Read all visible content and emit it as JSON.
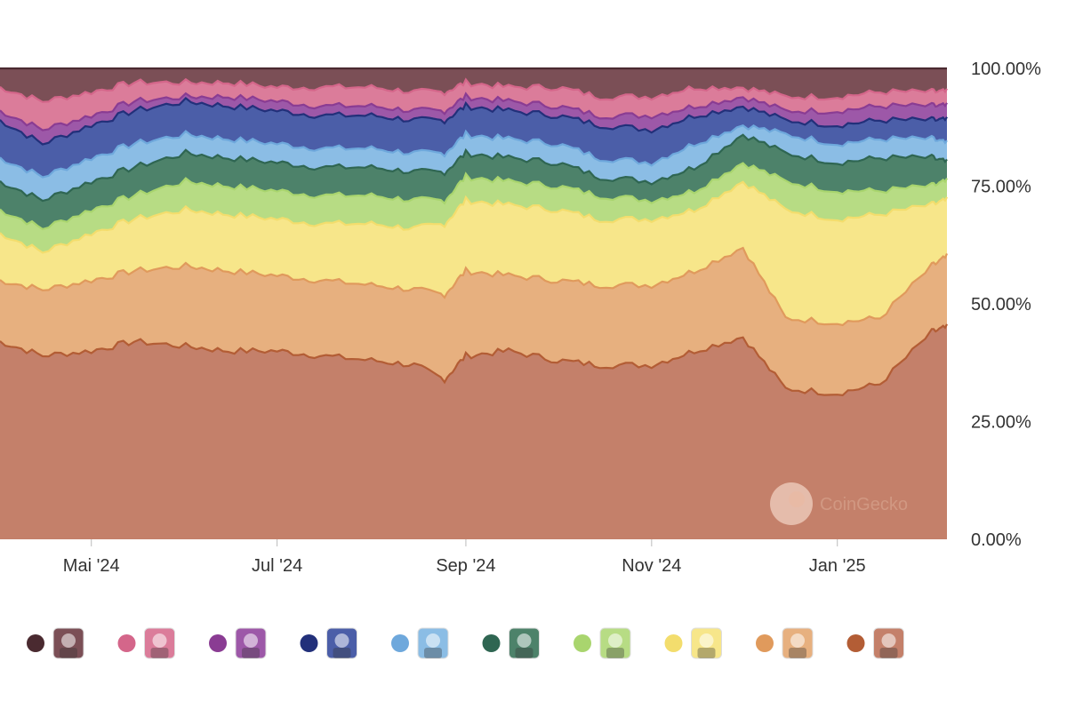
{
  "chart_data": {
    "type": "area",
    "stacking": "percent",
    "grid": false,
    "legend_position": "bottom",
    "watermark": "CoinGecko",
    "yticks": [
      "0.00%",
      "25.00%",
      "50.00%",
      "75.00%",
      "100.00%"
    ],
    "ylim": [
      0,
      100
    ],
    "xticks": [
      {
        "label": "Mai '24",
        "date": "2024-05-01"
      },
      {
        "label": "Jul '24",
        "date": "2024-07-01"
      },
      {
        "label": "Sep '24",
        "date": "2024-09-01"
      },
      {
        "label": "Nov '24",
        "date": "2024-11-01"
      },
      {
        "label": "Jan '25",
        "date": "2025-01-01"
      }
    ],
    "xlim": [
      "2024-04-01",
      "2025-02-06"
    ],
    "x": [
      "2024-04-01",
      "2024-04-15",
      "2024-05-01",
      "2024-05-15",
      "2024-06-01",
      "2024-06-15",
      "2024-07-01",
      "2024-07-15",
      "2024-08-01",
      "2024-08-15",
      "2024-08-25",
      "2024-09-01",
      "2024-09-15",
      "2024-10-01",
      "2024-10-15",
      "2024-11-01",
      "2024-11-15",
      "2024-12-01",
      "2024-12-15",
      "2025-01-01",
      "2025-01-15",
      "2025-02-01",
      "2025-02-06"
    ],
    "cumulative_top": [
      [
        42,
        39,
        40,
        42,
        41,
        40,
        40,
        39,
        38,
        37,
        34,
        39,
        40,
        38,
        37,
        37,
        40,
        43,
        32,
        31,
        33,
        44,
        45
      ],
      [
        55,
        53,
        55,
        57,
        58,
        57,
        56,
        55,
        54,
        53,
        52,
        57,
        56,
        55,
        54,
        54,
        57,
        62,
        47,
        46,
        47,
        58,
        60
      ],
      [
        65,
        61,
        65,
        68,
        70,
        69,
        68,
        67,
        67,
        66,
        67,
        72,
        71,
        70,
        68,
        68,
        70,
        76,
        70,
        68,
        69,
        71,
        72
      ],
      [
        70,
        66,
        70,
        73,
        76,
        75,
        74,
        73,
        73,
        72,
        72,
        77,
        76,
        75,
        73,
        72,
        74,
        80,
        76,
        74,
        74,
        75,
        76
      ],
      [
        76,
        72,
        76,
        79,
        82,
        81,
        80,
        79,
        79,
        78,
        78,
        82,
        81,
        80,
        77,
        76,
        79,
        86,
        82,
        80,
        81,
        81,
        80
      ],
      [
        81,
        77,
        81,
        84,
        86,
        85,
        84,
        83,
        83,
        82,
        82,
        86,
        85,
        84,
        81,
        80,
        84,
        88,
        86,
        84,
        85,
        85,
        84
      ],
      [
        89,
        84,
        88,
        91,
        93,
        92,
        91,
        90,
        90,
        89,
        89,
        92,
        91,
        90,
        88,
        87,
        90,
        92,
        89,
        88,
        89,
        89,
        89
      ],
      [
        91,
        87,
        90,
        93,
        94,
        94,
        93,
        92,
        92,
        91,
        91,
        94,
        93,
        92,
        90,
        90,
        92,
        94,
        91,
        91,
        92,
        92,
        92
      ],
      [
        96,
        93,
        95,
        97,
        97,
        97,
        96,
        96,
        96,
        95,
        95,
        97,
        96,
        96,
        94,
        94,
        96,
        96,
        94,
        94,
        95,
        95,
        95
      ],
      [
        100,
        100,
        100,
        100,
        100,
        100,
        100,
        100,
        100,
        100,
        100,
        100,
        100,
        100,
        100,
        100,
        100,
        100,
        100,
        100,
        100,
        100,
        100
      ]
    ],
    "series": [
      {
        "legend_icon": "nft-avatar-pixel-punk-icon",
        "fill": "#c4806a",
        "line": "#b35d35"
      },
      {
        "legend_icon": "nft-avatar-black-ape-icon",
        "fill": "#e7b07f",
        "line": "#e09a5c"
      },
      {
        "legend_icon": "nft-avatar-penguin-icon",
        "fill": "#f7e68a",
        "line": "#f3dd6d"
      },
      {
        "legend_icon": "nft-avatar-dark-red-icon",
        "fill": "#b7dc84",
        "line": "#a9d56e"
      },
      {
        "legend_icon": "nft-avatar-grey-cat-icon",
        "fill": "#4d826a",
        "line": "#2f6652"
      },
      {
        "legend_icon": "nft-avatar-mad-lads-icon",
        "fill": "#8bbde5",
        "line": "#6ea8dc"
      },
      {
        "legend_icon": "nft-avatar-robot-icon",
        "fill": "#4b5ea8",
        "line": "#22307a"
      },
      {
        "legend_icon": "nft-avatar-blue-red-icon",
        "fill": "#9d58a8",
        "line": "#8a3c93"
      },
      {
        "legend_icon": "nft-avatar-orange-bear-icon",
        "fill": "#db7c9a",
        "line": "#d4668a"
      },
      {
        "legend_icon": "nft-avatar-grey-hair-icon",
        "fill": "#7b4f56",
        "line": "#4a2a30"
      }
    ]
  }
}
